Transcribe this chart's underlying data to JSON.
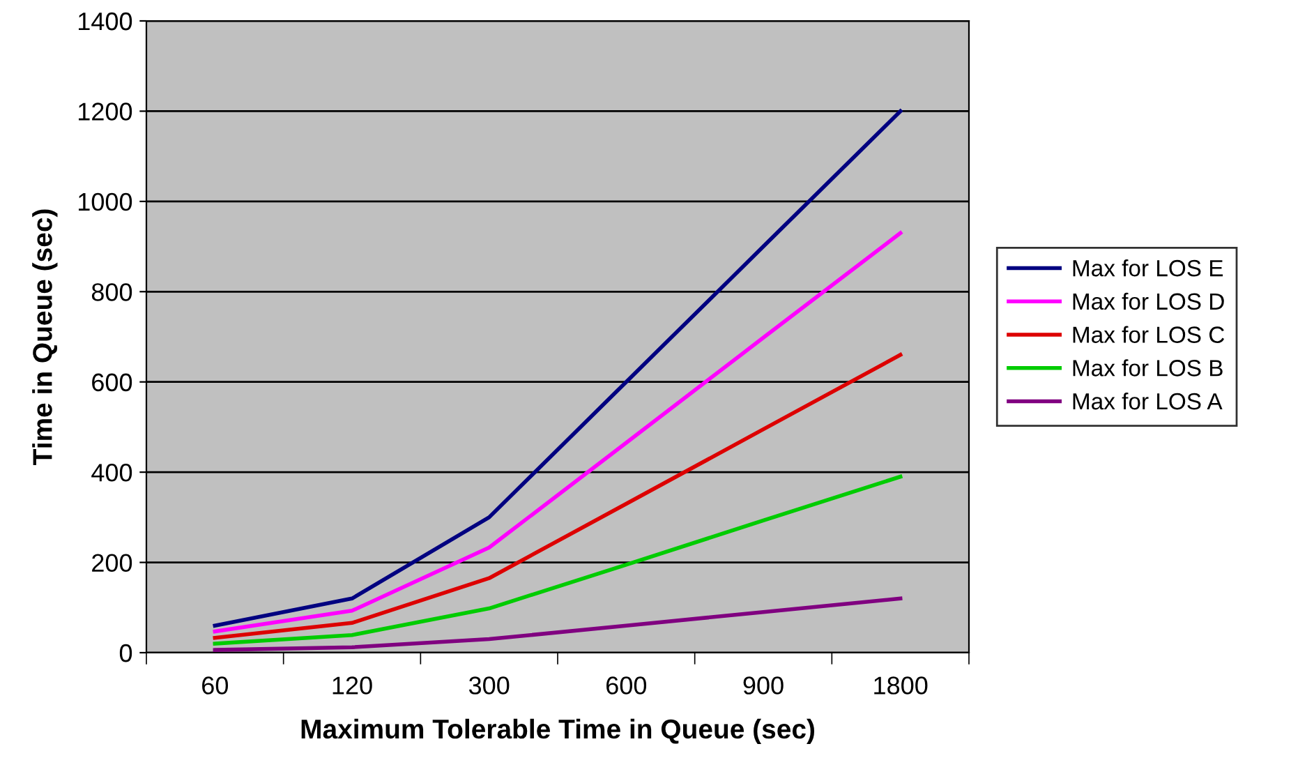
{
  "chart_data": {
    "type": "line",
    "xlabel": "Maximum Tolerable Time in Queue (sec)",
    "ylabel": "Time in Queue (sec)",
    "categories": [
      "60",
      "120",
      "300",
      "600",
      "900",
      "1800"
    ],
    "ylim": [
      0,
      1400
    ],
    "yticks": [
      0,
      200,
      400,
      600,
      800,
      1000,
      1200,
      1400
    ],
    "grid": "y",
    "legend": "right",
    "marker": "none",
    "line_style": "solid",
    "series": [
      {
        "name": "Max for LOS E",
        "color": "#000080",
        "values": [
          60,
          120,
          300,
          600,
          900,
          1200
        ]
      },
      {
        "name": "Max for LOS D",
        "color": "#ff00ff",
        "values": [
          47,
          93,
          233,
          465,
          698,
          930
        ]
      },
      {
        "name": "Max for LOS C",
        "color": "#dd0000",
        "values": [
          33,
          66,
          165,
          330,
          495,
          660
        ]
      },
      {
        "name": "Max for LOS B",
        "color": "#00cc00",
        "values": [
          20,
          39,
          98,
          195,
          293,
          390
        ]
      },
      {
        "name": "Max for LOS A",
        "color": "#800080",
        "values": [
          6,
          12,
          30,
          60,
          90,
          120
        ]
      }
    ]
  }
}
